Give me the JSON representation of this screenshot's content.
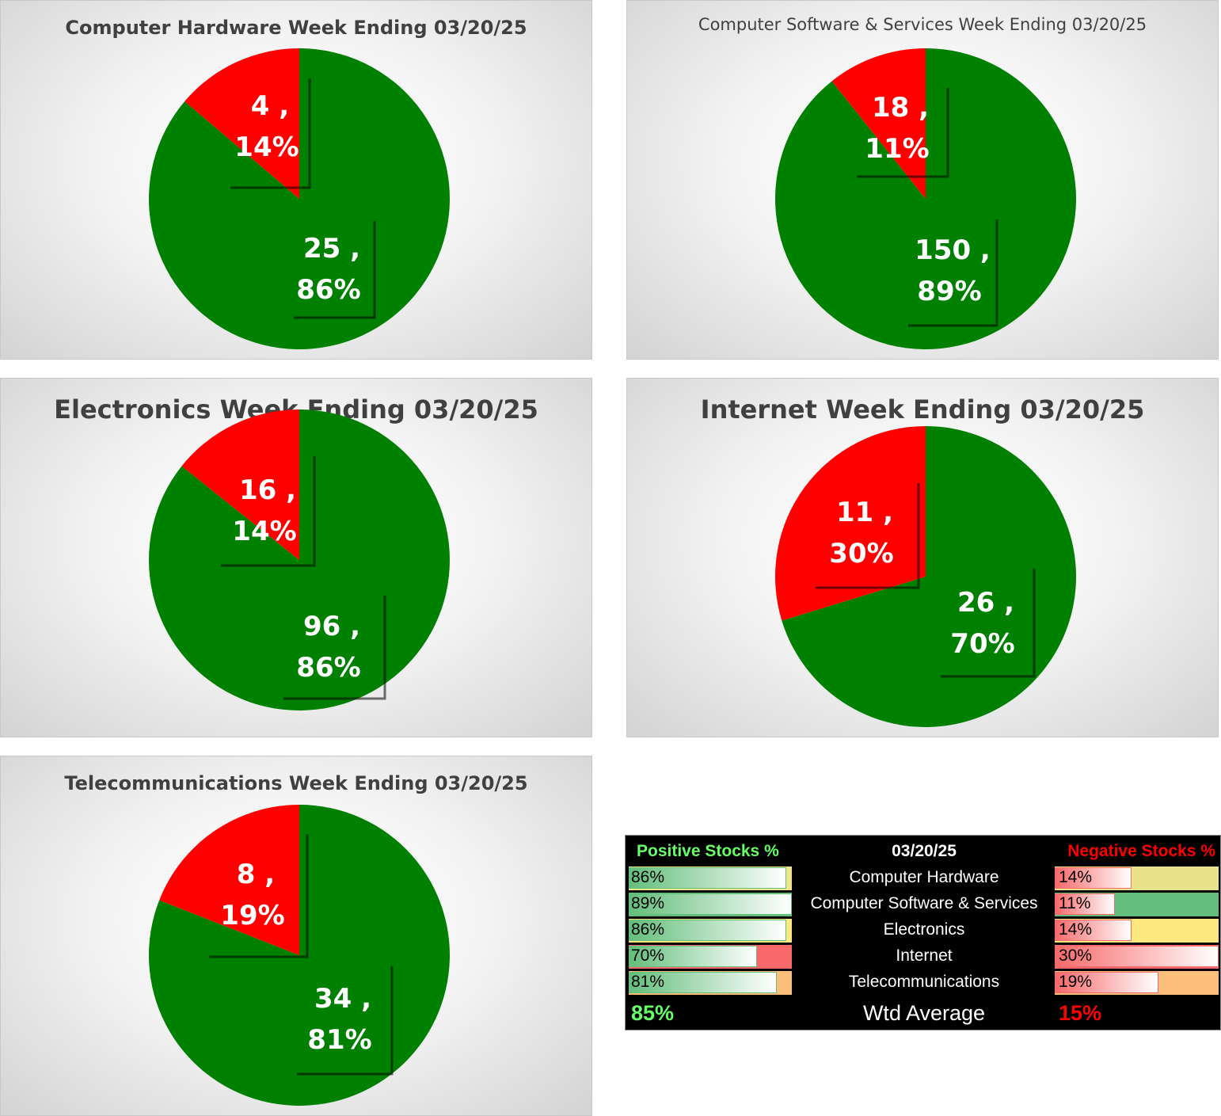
{
  "charts": [
    {
      "title": "Computer Hardware Week Ending 03/20/25",
      "slices": [
        {
          "name": "Negative",
          "count": 4,
          "pct": "14%"
        },
        {
          "name": "Positive",
          "count": 25,
          "pct": "86%"
        }
      ]
    },
    {
      "title": "Computer Software & Services Week Ending 03/20/25",
      "slices": [
        {
          "name": "Negative",
          "count": 18,
          "pct": "11%"
        },
        {
          "name": "Positive",
          "count": 150,
          "pct": "89%"
        }
      ]
    },
    {
      "title": "Electronics Week Ending 03/20/25",
      "slices": [
        {
          "name": "Negative",
          "count": 16,
          "pct": "14%"
        },
        {
          "name": "Positive",
          "count": 96,
          "pct": "86%"
        }
      ]
    },
    {
      "title": "Internet Week Ending 03/20/25",
      "slices": [
        {
          "name": "Negative",
          "count": 11,
          "pct": "30%"
        },
        {
          "name": "Positive",
          "count": 26,
          "pct": "70%"
        }
      ]
    },
    {
      "title": "Telecommunications Week Ending 03/20/25",
      "slices": [
        {
          "name": "Negative",
          "count": 8,
          "pct": "19%"
        },
        {
          "name": "Positive",
          "count": 34,
          "pct": "81%"
        }
      ]
    }
  ],
  "chart_data": [
    {
      "type": "pie",
      "title": "Computer Hardware Week Ending 03/20/25",
      "labels": [
        "Negative",
        "Positive"
      ],
      "values": [
        4,
        25
      ],
      "percents": [
        14,
        86
      ],
      "colors": [
        "#ff0000",
        "#008000"
      ]
    },
    {
      "type": "pie",
      "title": "Computer Software & Services Week Ending 03/20/25",
      "labels": [
        "Negative",
        "Positive"
      ],
      "values": [
        18,
        150
      ],
      "percents": [
        11,
        89
      ],
      "colors": [
        "#ff0000",
        "#008000"
      ]
    },
    {
      "type": "pie",
      "title": "Electronics Week Ending 03/20/25",
      "labels": [
        "Negative",
        "Positive"
      ],
      "values": [
        16,
        96
      ],
      "percents": [
        14,
        86
      ],
      "colors": [
        "#ff0000",
        "#008000"
      ]
    },
    {
      "type": "pie",
      "title": "Internet Week Ending 03/20/25",
      "labels": [
        "Negative",
        "Positive"
      ],
      "values": [
        11,
        26
      ],
      "percents": [
        30,
        70
      ],
      "colors": [
        "#ff0000",
        "#008000"
      ]
    },
    {
      "type": "pie",
      "title": "Telecommunications Week Ending 03/20/25",
      "labels": [
        "Negative",
        "Positive"
      ],
      "values": [
        8,
        34
      ],
      "percents": [
        19,
        81
      ],
      "colors": [
        "#ff0000",
        "#008000"
      ]
    },
    {
      "type": "table",
      "title": "03/20/25",
      "columns": [
        "Positive Stocks %",
        "03/20/25",
        "Negative Stocks %"
      ],
      "rows": [
        {
          "category": "Computer Hardware",
          "positive": "86%",
          "negative": "14%",
          "pos_value": 86,
          "neg_value": 14,
          "pos_bg": "#f4e58a",
          "neg_bg": "#e8e38a"
        },
        {
          "category": "Computer Software & Services",
          "positive": "89%",
          "negative": "11%",
          "pos_value": 89,
          "neg_value": 11,
          "pos_bg": "#63be7b",
          "neg_bg": "#63be7b"
        },
        {
          "category": "Electronics",
          "positive": "86%",
          "negative": "14%",
          "pos_value": 86,
          "neg_value": 14,
          "pos_bg": "#fde880",
          "neg_bg": "#fde880"
        },
        {
          "category": "Internet",
          "positive": "70%",
          "negative": "30%",
          "pos_value": 70,
          "neg_value": 30,
          "pos_bg": "#f8696b",
          "neg_bg": "#f8696b"
        },
        {
          "category": "Telecommunications",
          "positive": "81%",
          "negative": "19%",
          "pos_value": 81,
          "neg_value": 19,
          "pos_bg": "#fcbf7b",
          "neg_bg": "#fcbf7b"
        }
      ],
      "footer": {
        "positive": "85%",
        "label": "Wtd Average",
        "negative": "15%"
      }
    }
  ],
  "table": {
    "header_positive": "Positive Stocks %",
    "header_date": "03/20/25",
    "header_negative": "Negative Stocks %",
    "rows": [
      {
        "category": "Computer Hardware",
        "positive": "86%",
        "negative": "14%"
      },
      {
        "category": "Computer Software & Services",
        "positive": "89%",
        "negative": "11%"
      },
      {
        "category": "Electronics",
        "positive": "86%",
        "negative": "14%"
      },
      {
        "category": "Internet",
        "positive": "70%",
        "negative": "30%"
      },
      {
        "category": "Telecommunications",
        "positive": "81%",
        "negative": "19%"
      }
    ],
    "footer_positive": "85%",
    "footer_label": "Wtd Average",
    "footer_negative": "15%"
  },
  "colors": {
    "positive": "#008000",
    "negative": "#ff0000",
    "header_positive": "#66ff66",
    "header_negative": "#ff0000",
    "pos_bar": "#63be7b",
    "neg_bar": "#f8696b"
  }
}
